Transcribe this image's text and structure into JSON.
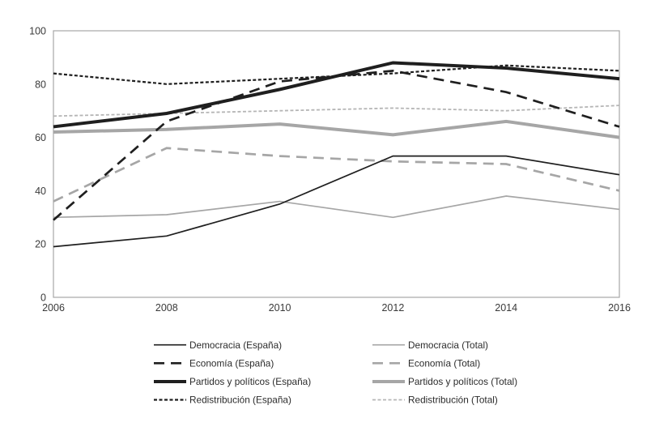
{
  "page": {
    "background": "#ffffff"
  },
  "chart_data": {
    "type": "line",
    "title": "",
    "xlabel": "",
    "ylabel": "",
    "x_categories": [
      "2006",
      "2008",
      "2010",
      "2012",
      "2014",
      "2016"
    ],
    "yticks": [
      0,
      20,
      40,
      60,
      80,
      100
    ],
    "ylim": [
      0,
      100
    ],
    "grid": false,
    "plot_border_color": "#a6a6a6",
    "axis_text_color": "#3a3a3a",
    "legend_position": "bottom-two-columns",
    "series": [
      {
        "name": "Democracia (España)",
        "values": [
          19,
          23,
          35,
          53,
          53,
          46
        ],
        "color": "#1f1f1f",
        "style": "solid",
        "width": 1.7
      },
      {
        "name": "Democracia (Total)",
        "values": [
          30,
          31,
          36,
          30,
          38,
          33
        ],
        "color": "#a6a6a6",
        "style": "solid",
        "width": 1.7
      },
      {
        "name": "Economía (España)",
        "values": [
          29,
          66,
          81,
          85,
          77,
          64
        ],
        "color": "#1f1f1f",
        "style": "dashed",
        "width": 2.7
      },
      {
        "name": "Economía (Total)",
        "values": [
          36,
          56,
          53,
          51,
          50,
          40
        ],
        "color": "#a6a6a6",
        "style": "dashed",
        "width": 2.7
      },
      {
        "name": "Partidos y políticos (España)",
        "values": [
          64,
          69,
          78,
          88,
          86,
          82
        ],
        "color": "#1f1f1f",
        "style": "solid",
        "width": 4.0
      },
      {
        "name": "Partidos y políticos (Total)",
        "values": [
          62,
          63,
          65,
          61,
          66,
          60
        ],
        "color": "#a6a6a6",
        "style": "solid",
        "width": 4.0
      },
      {
        "name": "Redistribución (España)",
        "values": [
          84,
          80,
          82,
          84,
          87,
          85
        ],
        "color": "#1f1f1f",
        "style": "dotted",
        "width": 2.2
      },
      {
        "name": "Redistribución (Total)",
        "values": [
          68,
          69,
          70,
          71,
          70,
          72
        ],
        "color": "#b5b5b5",
        "style": "dotted",
        "width": 1.8
      }
    ]
  }
}
